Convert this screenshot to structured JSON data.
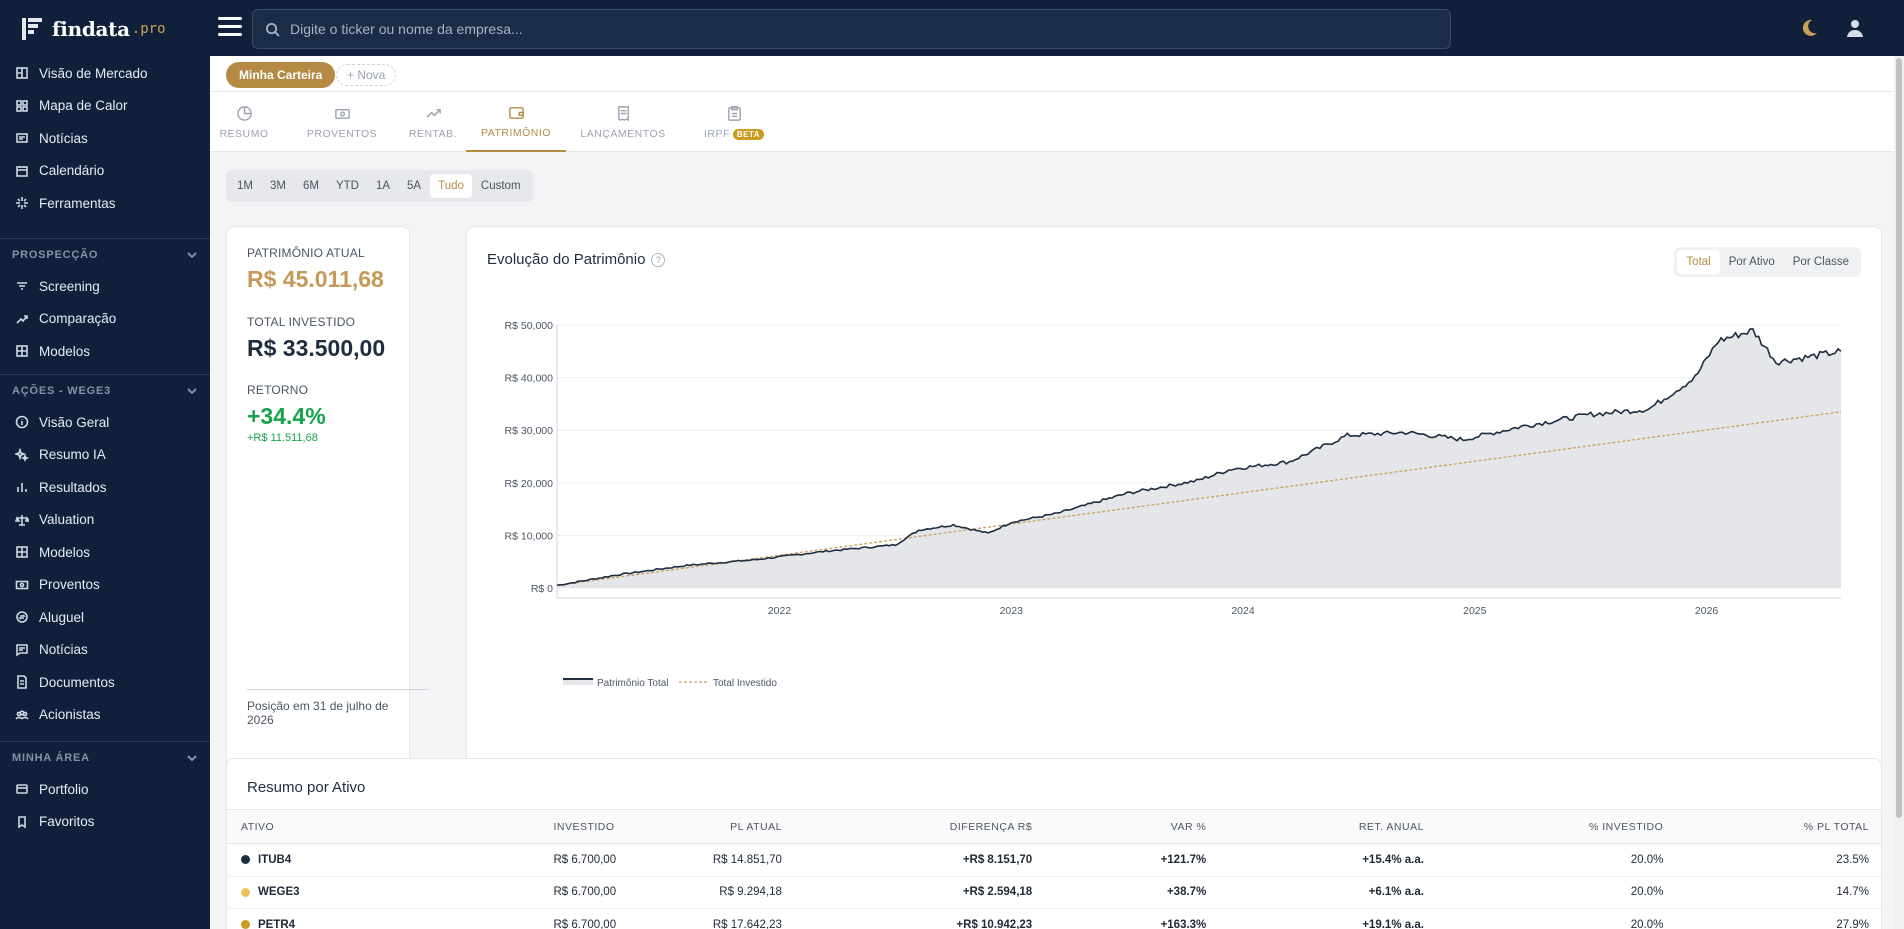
{
  "app": {
    "name": "findata",
    "suffix": ".pro"
  },
  "search": {
    "placeholder": "Digite o ticker ou nome da empresa..."
  },
  "sidebar": {
    "main_items": [
      {
        "label": "Visão de Mercado",
        "icon": "market-icon"
      },
      {
        "label": "Mapa de Calor",
        "icon": "heatmap-icon"
      },
      {
        "label": "Notícias",
        "icon": "news-icon"
      },
      {
        "label": "Calendário",
        "icon": "calendar-icon"
      },
      {
        "label": "Ferramentas",
        "icon": "tools-icon"
      }
    ],
    "section_prospeccao": "PROSPECÇÃO",
    "prospeccao_items": [
      {
        "label": "Screening",
        "icon": "filter-icon"
      },
      {
        "label": "Comparação",
        "icon": "compare-icon"
      },
      {
        "label": "Modelos",
        "icon": "grid-icon"
      }
    ],
    "section_acoes": "AÇÕES - WEGE3",
    "acoes_items": [
      {
        "label": "Visão Geral",
        "icon": "info-icon"
      },
      {
        "label": "Resumo IA",
        "icon": "sparkles-icon"
      },
      {
        "label": "Resultados",
        "icon": "bar-chart-icon"
      },
      {
        "label": "Valuation",
        "icon": "scale-icon"
      },
      {
        "label": "Modelos",
        "icon": "grid-icon"
      },
      {
        "label": "Proventos",
        "icon": "money-icon"
      },
      {
        "label": "Aluguel",
        "icon": "exchange-icon"
      },
      {
        "label": "Notícias",
        "icon": "message-icon"
      },
      {
        "label": "Documentos",
        "icon": "document-icon"
      },
      {
        "label": "Acionistas",
        "icon": "users-icon"
      }
    ],
    "section_minha": "MINHA ÁREA",
    "minha_items": [
      {
        "label": "Portfolio",
        "icon": "wallet-icon"
      },
      {
        "label": "Favoritos",
        "icon": "bookmark-icon"
      }
    ]
  },
  "portfolio": {
    "active": "Minha Carteira",
    "new": "+ Nova"
  },
  "tabs": [
    {
      "label": "RESUMO",
      "icon": "pie-icon"
    },
    {
      "label": "PROVENTOS",
      "icon": "cash-icon"
    },
    {
      "label": "RENTAB.",
      "icon": "trend-icon"
    },
    {
      "label": "PATRIMÔNIO",
      "icon": "wallet-icon"
    },
    {
      "label": "LANÇAMENTOS",
      "icon": "receipt-icon"
    },
    {
      "label": "IRPF",
      "icon": "clipboard-icon",
      "badge": "BETA"
    }
  ],
  "active_tab": "PATRIMÔNIO",
  "periods": [
    "1M",
    "3M",
    "6M",
    "YTD",
    "1A",
    "5A",
    "Tudo",
    "Custom"
  ],
  "active_period": "Tudo",
  "summary": {
    "patrimonio_label": "PATRIMÔNIO ATUAL",
    "patrimonio_value": "R$ 45.011,68",
    "investido_label": "TOTAL INVESTIDO",
    "investido_value": "R$ 33.500,00",
    "retorno_label": "RETORNO",
    "retorno_value": "+34.4%",
    "retorno_sub": "+R$ 11.511,68",
    "position_note": "Posição em 31 de julho de 2026"
  },
  "chart_card": {
    "title": "Evolução do Patrimônio",
    "help": "?",
    "views": [
      "Total",
      "Por Ativo",
      "Por Classe"
    ],
    "active_view": "Total"
  },
  "chart_data": {
    "type": "area",
    "title": "Evolução do Patrimônio",
    "x_ticks": [
      "2022",
      "2023",
      "2024",
      "2025",
      "2026"
    ],
    "y_ticks": [
      "R$ 0",
      "R$ 10,000",
      "R$ 20,000",
      "R$ 30,000",
      "R$ 40,000",
      "R$ 50,000"
    ],
    "ylim": [
      0,
      50000
    ],
    "xlim": [
      2021.04,
      2026.58
    ],
    "legend_position": "bottom-left",
    "grid": true,
    "series": [
      {
        "name": "Patrimônio Total",
        "color": "#1f2d40",
        "fill": "#e5e6ea",
        "x": [
          2021.04,
          2021.3,
          2021.6,
          2021.9,
          2022.2,
          2022.5,
          2022.6,
          2022.75,
          2022.9,
          2023.0,
          2023.2,
          2023.5,
          2023.8,
          2023.95,
          2024.2,
          2024.45,
          2024.7,
          2024.95,
          2025.2,
          2025.5,
          2025.75,
          2025.95,
          2026.05,
          2026.2,
          2026.3,
          2026.45,
          2026.58
        ],
        "y": [
          500,
          2500,
          4300,
          5400,
          7000,
          8200,
          11000,
          12000,
          10400,
          12500,
          14200,
          18000,
          20400,
          22600,
          24000,
          29000,
          29600,
          28200,
          30700,
          33000,
          34000,
          40000,
          47000,
          49000,
          43000,
          44000,
          45000
        ]
      },
      {
        "name": "Total Investido",
        "color": "#c8a05e",
        "dashed": true,
        "x": [
          2021.04,
          2026.58
        ],
        "y": [
          500,
          33500
        ]
      }
    ]
  },
  "table": {
    "title": "Resumo por Ativo",
    "headers": [
      "ATIVO",
      "INVESTIDO",
      "PL ATUAL",
      "DIFERENÇA R$",
      "VAR %",
      "RET. ANUAL",
      "% INVESTIDO",
      "% PL TOTAL"
    ],
    "rows": [
      {
        "color": "#1f2d40",
        "cells": [
          "ITUB4",
          "R$ 6.700,00",
          "R$ 14.851,70",
          "+R$ 8.151,70",
          "+121.7%",
          "+15.4% a.a.",
          "20.0%",
          "23.5%"
        ]
      },
      {
        "color": "#e6c15c",
        "cells": [
          "WEGE3",
          "R$ 6.700,00",
          "R$ 9.294,18",
          "+R$ 2.594,18",
          "+38.7%",
          "+6.1% a.a.",
          "20.0%",
          "14.7%"
        ]
      },
      {
        "color": "#c99a1e",
        "cells": [
          "PETR4",
          "R$ 6.700,00",
          "R$ 17.642,23",
          "+R$ 10.942,23",
          "+163.3%",
          "+19.1% a.a.",
          "20.0%",
          "27.9%"
        ]
      }
    ]
  }
}
